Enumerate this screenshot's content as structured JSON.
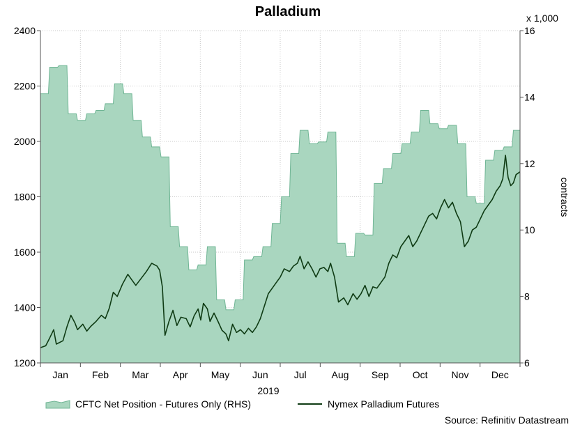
{
  "chart_data": {
    "type": "area+line",
    "title": "Palladium",
    "year_label": "2019",
    "source": "Source: Refinitiv Datastream",
    "months": [
      "Jan",
      "Feb",
      "Mar",
      "Apr",
      "May",
      "Jun",
      "Jul",
      "Aug",
      "Sep",
      "Oct",
      "Nov",
      "Dec"
    ],
    "x_range_days": [
      0,
      362
    ],
    "left_axis": {
      "min": 1200,
      "max": 2400,
      "ticks": [
        1200,
        1400,
        1600,
        1800,
        2000,
        2200,
        2400
      ]
    },
    "right_axis": {
      "min": 6,
      "max": 16,
      "ticks": [
        6,
        8,
        10,
        12,
        14,
        16
      ],
      "label": "contracts",
      "multiplier": "x 1,000"
    },
    "grid": true,
    "legend_position": "bottom",
    "series": [
      {
        "name": "CFTC Net Position - Futures Only (RHS)",
        "kind": "area-step",
        "axis": "right",
        "color": "#a9d6bf",
        "edge_color": "#6fb594",
        "points": [
          [
            0,
            14.1
          ],
          [
            6,
            14.1
          ],
          [
            7,
            14.9
          ],
          [
            13,
            14.9
          ],
          [
            14,
            14.95
          ],
          [
            20,
            14.95
          ],
          [
            21,
            13.5
          ],
          [
            27,
            13.5
          ],
          [
            28,
            13.3
          ],
          [
            34,
            13.3
          ],
          [
            35,
            13.5
          ],
          [
            41,
            13.5
          ],
          [
            42,
            13.6
          ],
          [
            48,
            13.6
          ],
          [
            49,
            13.8
          ],
          [
            55,
            13.8
          ],
          [
            56,
            14.4
          ],
          [
            62,
            14.4
          ],
          [
            63,
            14.1
          ],
          [
            69,
            14.1
          ],
          [
            70,
            13.3
          ],
          [
            76,
            13.3
          ],
          [
            77,
            12.8
          ],
          [
            83,
            12.8
          ],
          [
            84,
            12.5
          ],
          [
            90,
            12.5
          ],
          [
            91,
            12.2
          ],
          [
            97,
            12.2
          ],
          [
            98,
            10.1
          ],
          [
            104,
            10.1
          ],
          [
            105,
            9.5
          ],
          [
            111,
            9.5
          ],
          [
            112,
            8.8
          ],
          [
            118,
            8.8
          ],
          [
            119,
            8.95
          ],
          [
            125,
            8.95
          ],
          [
            126,
            9.5
          ],
          [
            132,
            9.5
          ],
          [
            133,
            7.9
          ],
          [
            139,
            7.9
          ],
          [
            140,
            7.6
          ],
          [
            146,
            7.6
          ],
          [
            147,
            7.9
          ],
          [
            153,
            7.9
          ],
          [
            154,
            9.1
          ],
          [
            160,
            9.1
          ],
          [
            161,
            9.2
          ],
          [
            167,
            9.2
          ],
          [
            168,
            9.5
          ],
          [
            174,
            9.5
          ],
          [
            175,
            10.2
          ],
          [
            181,
            10.2
          ],
          [
            182,
            11.0
          ],
          [
            188,
            11.0
          ],
          [
            189,
            12.3
          ],
          [
            195,
            12.3
          ],
          [
            196,
            13.0
          ],
          [
            202,
            13.0
          ],
          [
            203,
            12.6
          ],
          [
            209,
            12.6
          ],
          [
            210,
            12.65
          ],
          [
            216,
            12.65
          ],
          [
            217,
            12.95
          ],
          [
            223,
            12.95
          ],
          [
            224,
            9.6
          ],
          [
            230,
            9.6
          ],
          [
            231,
            9.2
          ],
          [
            237,
            9.2
          ],
          [
            238,
            9.9
          ],
          [
            244,
            9.9
          ],
          [
            245,
            9.85
          ],
          [
            251,
            9.85
          ],
          [
            252,
            11.4
          ],
          [
            258,
            11.4
          ],
          [
            259,
            11.85
          ],
          [
            265,
            11.85
          ],
          [
            266,
            12.3
          ],
          [
            272,
            12.3
          ],
          [
            273,
            12.6
          ],
          [
            279,
            12.6
          ],
          [
            280,
            12.95
          ],
          [
            286,
            12.95
          ],
          [
            287,
            13.6
          ],
          [
            293,
            13.6
          ],
          [
            294,
            13.2
          ],
          [
            300,
            13.2
          ],
          [
            301,
            13.05
          ],
          [
            307,
            13.05
          ],
          [
            308,
            13.15
          ],
          [
            314,
            13.15
          ],
          [
            315,
            12.6
          ],
          [
            321,
            12.6
          ],
          [
            322,
            11.0
          ],
          [
            328,
            11.0
          ],
          [
            329,
            10.8
          ],
          [
            335,
            10.8
          ],
          [
            336,
            12.1
          ],
          [
            342,
            12.1
          ],
          [
            343,
            12.4
          ],
          [
            349,
            12.4
          ],
          [
            350,
            12.5
          ],
          [
            356,
            12.5
          ],
          [
            357,
            13.0
          ],
          [
            362,
            13.0
          ]
        ]
      },
      {
        "name": "Nymex Palladium Futures",
        "kind": "line",
        "axis": "left",
        "color": "#0f3b14",
        "points": [
          [
            0,
            1255
          ],
          [
            4,
            1262
          ],
          [
            7,
            1290
          ],
          [
            10,
            1320
          ],
          [
            12,
            1268
          ],
          [
            17,
            1280
          ],
          [
            20,
            1330
          ],
          [
            23,
            1372
          ],
          [
            26,
            1345
          ],
          [
            28,
            1320
          ],
          [
            32,
            1340
          ],
          [
            35,
            1315
          ],
          [
            38,
            1332
          ],
          [
            42,
            1350
          ],
          [
            46,
            1372
          ],
          [
            49,
            1360
          ],
          [
            52,
            1398
          ],
          [
            55,
            1455
          ],
          [
            58,
            1440
          ],
          [
            62,
            1485
          ],
          [
            66,
            1520
          ],
          [
            69,
            1500
          ],
          [
            72,
            1480
          ],
          [
            76,
            1505
          ],
          [
            80,
            1530
          ],
          [
            84,
            1560
          ],
          [
            88,
            1550
          ],
          [
            90,
            1535
          ],
          [
            92,
            1475
          ],
          [
            94,
            1300
          ],
          [
            97,
            1350
          ],
          [
            100,
            1390
          ],
          [
            103,
            1335
          ],
          [
            106,
            1365
          ],
          [
            110,
            1360
          ],
          [
            113,
            1330
          ],
          [
            116,
            1370
          ],
          [
            119,
            1395
          ],
          [
            121,
            1355
          ],
          [
            123,
            1415
          ],
          [
            126,
            1395
          ],
          [
            128,
            1350
          ],
          [
            131,
            1380
          ],
          [
            134,
            1350
          ],
          [
            137,
            1318
          ],
          [
            140,
            1305
          ],
          [
            142,
            1280
          ],
          [
            145,
            1340
          ],
          [
            148,
            1310
          ],
          [
            151,
            1320
          ],
          [
            154,
            1305
          ],
          [
            157,
            1325
          ],
          [
            160,
            1310
          ],
          [
            163,
            1330
          ],
          [
            166,
            1360
          ],
          [
            169,
            1405
          ],
          [
            172,
            1450
          ],
          [
            175,
            1470
          ],
          [
            178,
            1490
          ],
          [
            181,
            1510
          ],
          [
            184,
            1540
          ],
          [
            188,
            1530
          ],
          [
            191,
            1550
          ],
          [
            194,
            1560
          ],
          [
            196,
            1585
          ],
          [
            199,
            1540
          ],
          [
            202,
            1565
          ],
          [
            205,
            1540
          ],
          [
            208,
            1510
          ],
          [
            211,
            1540
          ],
          [
            214,
            1545
          ],
          [
            217,
            1530
          ],
          [
            219,
            1560
          ],
          [
            222,
            1510
          ],
          [
            225,
            1420
          ],
          [
            229,
            1435
          ],
          [
            232,
            1410
          ],
          [
            236,
            1450
          ],
          [
            239,
            1430
          ],
          [
            242,
            1450
          ],
          [
            245,
            1480
          ],
          [
            248,
            1440
          ],
          [
            251,
            1475
          ],
          [
            254,
            1470
          ],
          [
            257,
            1490
          ],
          [
            260,
            1510
          ],
          [
            263,
            1560
          ],
          [
            266,
            1590
          ],
          [
            269,
            1580
          ],
          [
            272,
            1620
          ],
          [
            275,
            1640
          ],
          [
            278,
            1660
          ],
          [
            281,
            1620
          ],
          [
            284,
            1640
          ],
          [
            287,
            1670
          ],
          [
            290,
            1700
          ],
          [
            293,
            1730
          ],
          [
            296,
            1740
          ],
          [
            299,
            1720
          ],
          [
            302,
            1760
          ],
          [
            305,
            1790
          ],
          [
            308,
            1760
          ],
          [
            311,
            1780
          ],
          [
            314,
            1740
          ],
          [
            317,
            1710
          ],
          [
            320,
            1620
          ],
          [
            323,
            1640
          ],
          [
            326,
            1680
          ],
          [
            329,
            1690
          ],
          [
            332,
            1720
          ],
          [
            335,
            1750
          ],
          [
            338,
            1770
          ],
          [
            341,
            1790
          ],
          [
            344,
            1820
          ],
          [
            347,
            1840
          ],
          [
            349,
            1865
          ],
          [
            351,
            1950
          ],
          [
            353,
            1870
          ],
          [
            355,
            1840
          ],
          [
            357,
            1850
          ],
          [
            359,
            1880
          ],
          [
            362,
            1890
          ]
        ]
      }
    ]
  }
}
